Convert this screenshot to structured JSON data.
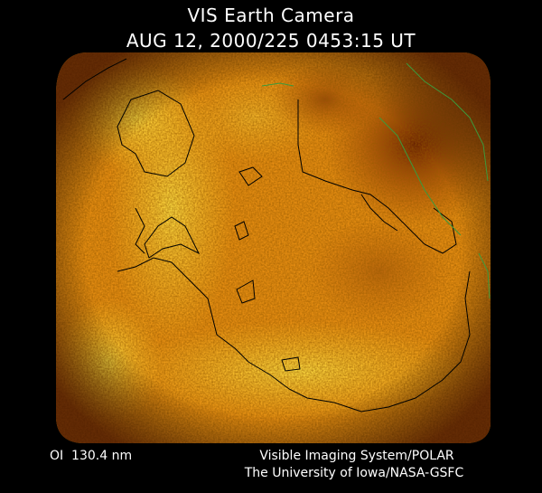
{
  "header": {
    "title": "VIS Earth Camera",
    "timestamp": "AUG 12, 2000/225 0453:15 UT"
  },
  "footer": {
    "filter": "OI  130.4 nm",
    "instrument": "Visible Imaging System/POLAR",
    "institution": "The University of Iowa/NASA-GSFC"
  }
}
